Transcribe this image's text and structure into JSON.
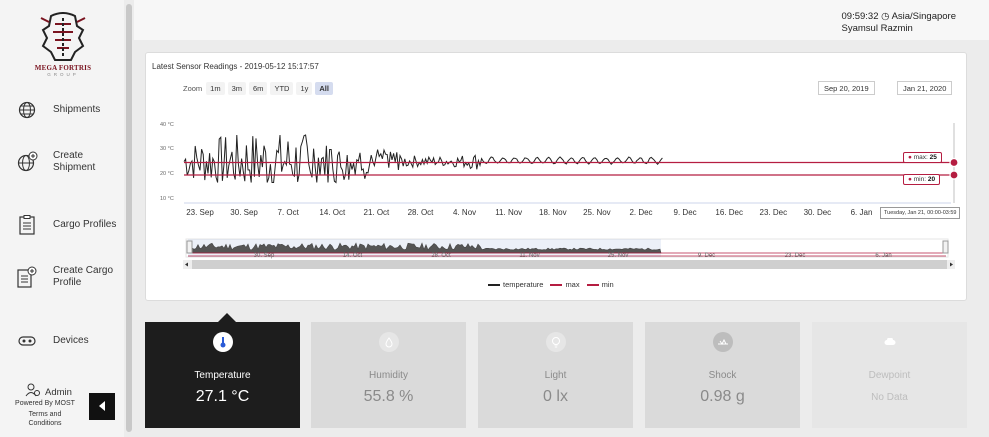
{
  "brand": {
    "name": "MEGA FORTRIS",
    "sub": "GROUP"
  },
  "nav": [
    {
      "key": "shipments",
      "label": "Shipments",
      "icon": "globe-icon"
    },
    {
      "key": "create-shipment",
      "label": "Create Shipment",
      "icon": "globe-plus-icon"
    },
    {
      "key": "cargo-profiles",
      "label": "Cargo Profiles",
      "icon": "clipboard-icon"
    },
    {
      "key": "create-cargo-profile",
      "label": "Create Cargo Profile",
      "icon": "clipboard-plus-icon"
    },
    {
      "key": "devices",
      "label": "Devices",
      "icon": "device-icon"
    }
  ],
  "admin": {
    "label": "Admin",
    "powered": "Powered By MOST",
    "terms": "Terms and Conditions"
  },
  "header": {
    "time": "09:59:32",
    "timezone": "Asia/Singapore",
    "user": "Syamsul Razmin"
  },
  "chart_card": {
    "title": "Latest Sensor Readings - 2019-05-12 15:17:57",
    "zoom_label": "Zoom",
    "zoom_options": [
      "1m",
      "3m",
      "6m",
      "YTD",
      "1y",
      "All"
    ],
    "zoom_selected": "All",
    "date_from": "Sep 20, 2019",
    "date_to": "Jan 21, 2020",
    "max_tip": {
      "label": "max:",
      "value": "25"
    },
    "min_tip": {
      "label": "min:",
      "value": "20"
    },
    "tooltip_date": "Tuesday, Jan 21, 00:00-03:59",
    "navigator_labels": [
      "30. Sep",
      "14. Oct",
      "28. Oct",
      "11. Nov",
      "25. Nov",
      "9. Dec",
      "23. Dec",
      "6. Jan"
    ]
  },
  "chart_data": {
    "type": "line",
    "xlabel": "",
    "ylabel": "",
    "x_ticks": [
      "23. Sep",
      "30. Sep",
      "7. Oct",
      "14. Oct",
      "21. Oct",
      "28. Oct",
      "4. Nov",
      "11. Nov",
      "18. Nov",
      "25. Nov",
      "2. Dec",
      "9. Dec",
      "16. Dec",
      "23. Dec",
      "30. Dec",
      "6. Jan"
    ],
    "y_ticks": [
      "40 °C",
      "30 °C",
      "20 °C",
      "10 °C"
    ],
    "ylim": [
      10,
      40
    ],
    "x_range": [
      "2019-09-20",
      "2020-01-21"
    ],
    "series": [
      {
        "name": "temperature",
        "color": "#222222",
        "start": "2019-09-21",
        "end": "2019-12-06",
        "approx_range": [
          17,
          36
        ]
      },
      {
        "name": "max",
        "color": "#b51d41",
        "value": 25
      },
      {
        "name": "min",
        "color": "#b51d41",
        "value": 20
      }
    ]
  },
  "tiles": [
    {
      "label": "Temperature",
      "value": "27.1 °C",
      "icon": "thermometer-icon",
      "active": true
    },
    {
      "label": "Humidity",
      "value": "55.8 %",
      "icon": "droplet-icon",
      "active": false
    },
    {
      "label": "Light",
      "value": "0 lx",
      "icon": "bulb-icon",
      "active": false
    },
    {
      "label": "Shock",
      "value": "0.98 g",
      "icon": "shock-icon",
      "active": false
    },
    {
      "label": "Dewpoint",
      "value": "No Data",
      "icon": "cloud-icon",
      "active": false
    }
  ],
  "colors": {
    "accent": "#b51d41",
    "active_tile": "#1d1d1d",
    "inactive_tile": "#dadada"
  }
}
